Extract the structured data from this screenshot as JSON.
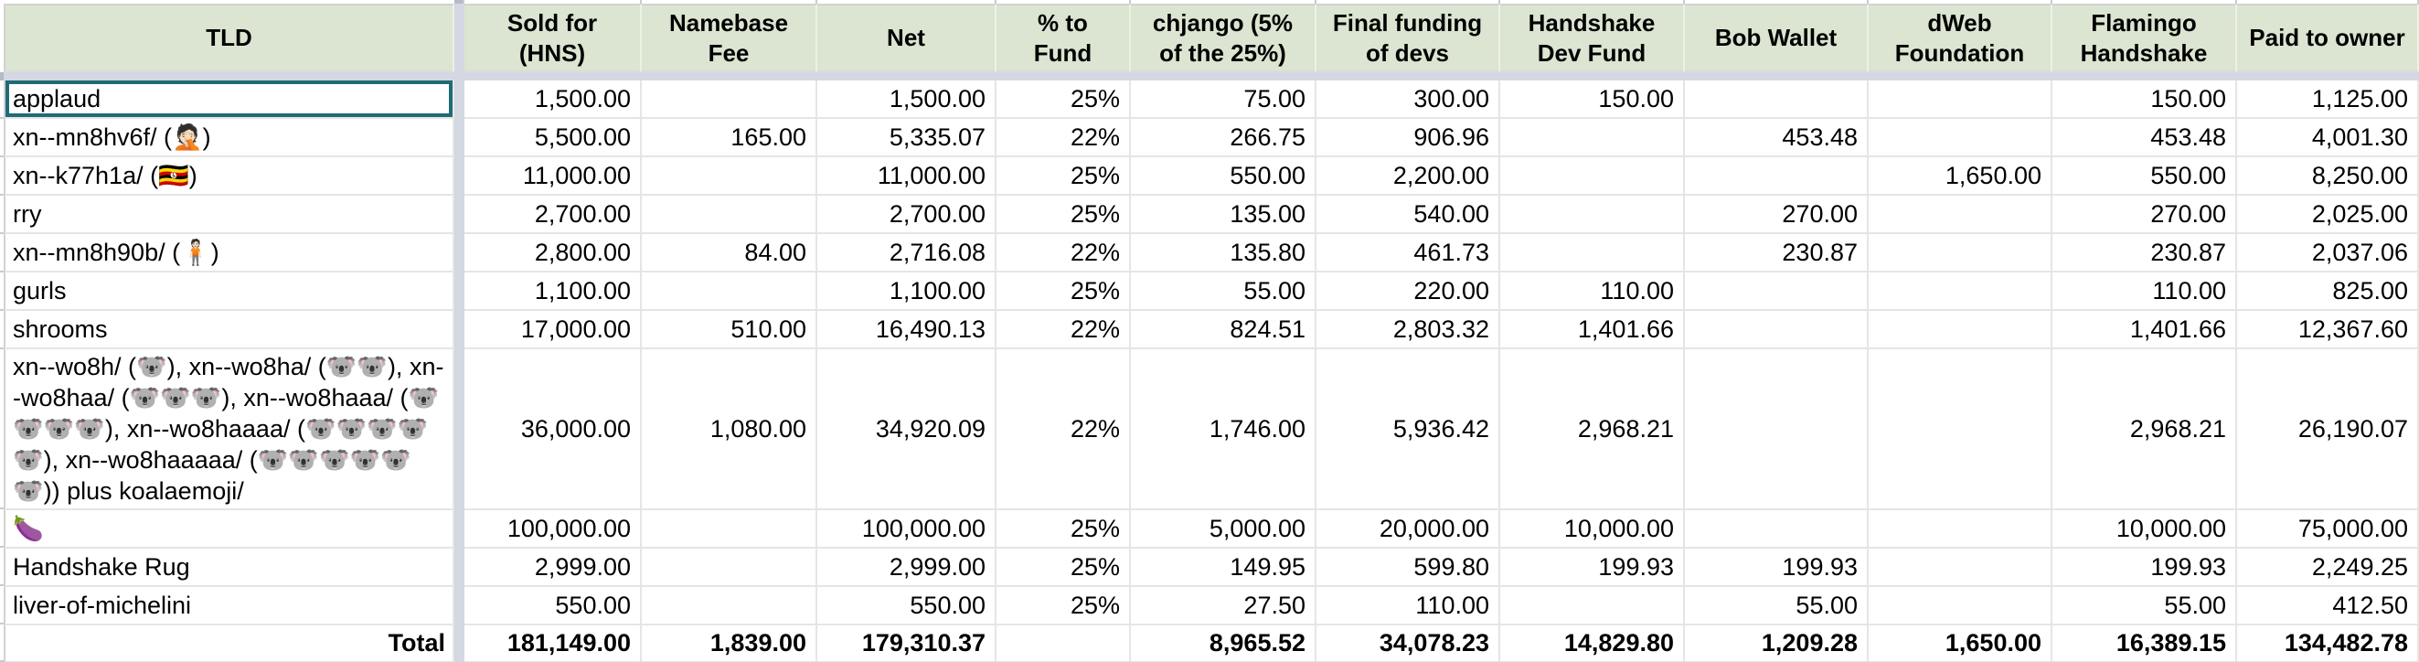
{
  "sheet": {
    "selection": {
      "cell": "applaud",
      "border_color": "#1f6b76"
    },
    "header_bg_color": "#dbe5d1",
    "columns": [
      "TLD",
      "Sold for (HNS)",
      "Namebase Fee",
      "Net",
      "% to Fund",
      "chjango (5% of the 25%)",
      "Final funding of devs",
      "Handshake Dev Fund",
      "Bob Wallet",
      "dWeb Foundation",
      "Flamingo Handshake",
      "Paid to owner"
    ],
    "rows": [
      {
        "tld": "applaud",
        "selected": true,
        "cells": [
          "1,500.00",
          "",
          "1,500.00",
          "25%",
          "75.00",
          "300.00",
          "150.00",
          "",
          "",
          "150.00",
          "1,125.00"
        ]
      },
      {
        "tld": "xn--mn8hv6f/ (🤦🏻)",
        "cells": [
          "5,500.00",
          "165.00",
          "5,335.07",
          "22%",
          "266.75",
          "906.96",
          "",
          "453.48",
          "",
          "453.48",
          "4,001.30"
        ]
      },
      {
        "tld": "xn--k77h1a/ (🇺🇬)",
        "cells": [
          "11,000.00",
          "",
          "11,000.00",
          "25%",
          "550.00",
          "2,200.00",
          "",
          "",
          "1,650.00",
          "550.00",
          "8,250.00"
        ]
      },
      {
        "tld": "rry",
        "cells": [
          "2,700.00",
          "",
          "2,700.00",
          "25%",
          "135.00",
          "540.00",
          "",
          "270.00",
          "",
          "270.00",
          "2,025.00"
        ]
      },
      {
        "tld": "xn--mn8h90b/ (🧍🏻)",
        "cells": [
          "2,800.00",
          "84.00",
          "2,716.08",
          "22%",
          "135.80",
          "461.73",
          "",
          "230.87",
          "",
          "230.87",
          "2,037.06"
        ]
      },
      {
        "tld": "gurls",
        "cells": [
          "1,100.00",
          "",
          "1,100.00",
          "25%",
          "55.00",
          "220.00",
          "110.00",
          "",
          "",
          "110.00",
          "825.00"
        ]
      },
      {
        "tld": "shrooms",
        "cells": [
          "17,000.00",
          "510.00",
          "16,490.13",
          "22%",
          "824.51",
          "2,803.32",
          "1,401.66",
          "",
          "",
          "1,401.66",
          "12,367.60"
        ]
      },
      {
        "tld": "xn--wo8h/ (🐨), xn--wo8ha/ (🐨🐨), xn--wo8haa/ (🐨🐨🐨), xn--wo8haaa/ (🐨🐨🐨🐨), xn--wo8haaaa/ (🐨🐨🐨🐨🐨), xn--wo8haaaaa/ (🐨🐨🐨🐨🐨🐨)) plus koalaemoji/",
        "tall": true,
        "cells": [
          "36,000.00",
          "1,080.00",
          "34,920.09",
          "22%",
          "1,746.00",
          "5,936.42",
          "2,968.21",
          "",
          "",
          "2,968.21",
          "26,190.07"
        ]
      },
      {
        "tld": "🍆",
        "cells": [
          "100,000.00",
          "",
          "100,000.00",
          "25%",
          "5,000.00",
          "20,000.00",
          "10,000.00",
          "",
          "",
          "10,000.00",
          "75,000.00"
        ]
      },
      {
        "tld": "Handshake Rug",
        "cells": [
          "2,999.00",
          "",
          "2,999.00",
          "25%",
          "149.95",
          "599.80",
          "199.93",
          "199.93",
          "",
          "199.93",
          "2,249.25"
        ]
      },
      {
        "tld": "liver-of-michelini",
        "cells": [
          "550.00",
          "",
          "550.00",
          "25%",
          "27.50",
          "110.00",
          "",
          "55.00",
          "",
          "55.00",
          "412.50"
        ]
      },
      {
        "tld": "Total",
        "total": true,
        "cells": [
          "181,149.00",
          "1,839.00",
          "179,310.37",
          "",
          "8,965.52",
          "34,078.23",
          "14,829.80",
          "1,209.28",
          "1,650.00",
          "16,389.15",
          "134,482.78"
        ]
      }
    ]
  }
}
